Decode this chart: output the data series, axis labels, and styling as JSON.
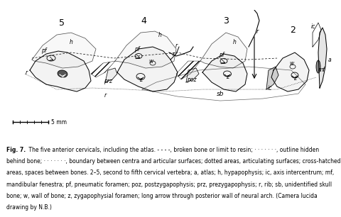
{
  "figure_title": "Fig. 7.",
  "caption_bold": "Fig. 7.",
  "caption_text": " The five anterior cervicals, including the atlas. - - - -, broken bone or limit to resin; · · · · · · ·, outline hidden behind bone; · · · · · · ·, boundary between centra and articular surfaces; dotted areas, articulating surfaces; cross-hatched areas, spaces between bones. 2–5, second to fifth cervical vertebra; a, atlas; h, hypapophysis; ic, axis intercentrum; mf, mandibular fenestra; pf, pneumatic foramen; poz, postzygapophysis; prz, prezygapophysis; r, rib; sb, unidentified skull bone; w, wall of bone; z, zygapophysial foramen; long arrow through posterior wall of neural arch. (Camera lucida drawing by N.B.)",
  "scale_bar_label": "5 mm",
  "bg_color": "#ffffff",
  "text_color": "#000000",
  "figure_width": 4.8,
  "figure_height": 3.06,
  "dpi": 100,
  "drawing_bg": "#f5f5f5",
  "vertebra_labels": [
    "5",
    "4",
    "3",
    "2"
  ],
  "anatomical_labels": [
    "h",
    "pf",
    "z",
    "prz",
    "r",
    "h",
    "pf",
    "w",
    "z",
    "r",
    "poz",
    "pf",
    "z",
    "h",
    "w",
    "z",
    "ic",
    "mf",
    "a",
    "ic",
    "sb",
    "r"
  ],
  "caption_fontsize": 5.5,
  "bold_fontsize": 5.5
}
